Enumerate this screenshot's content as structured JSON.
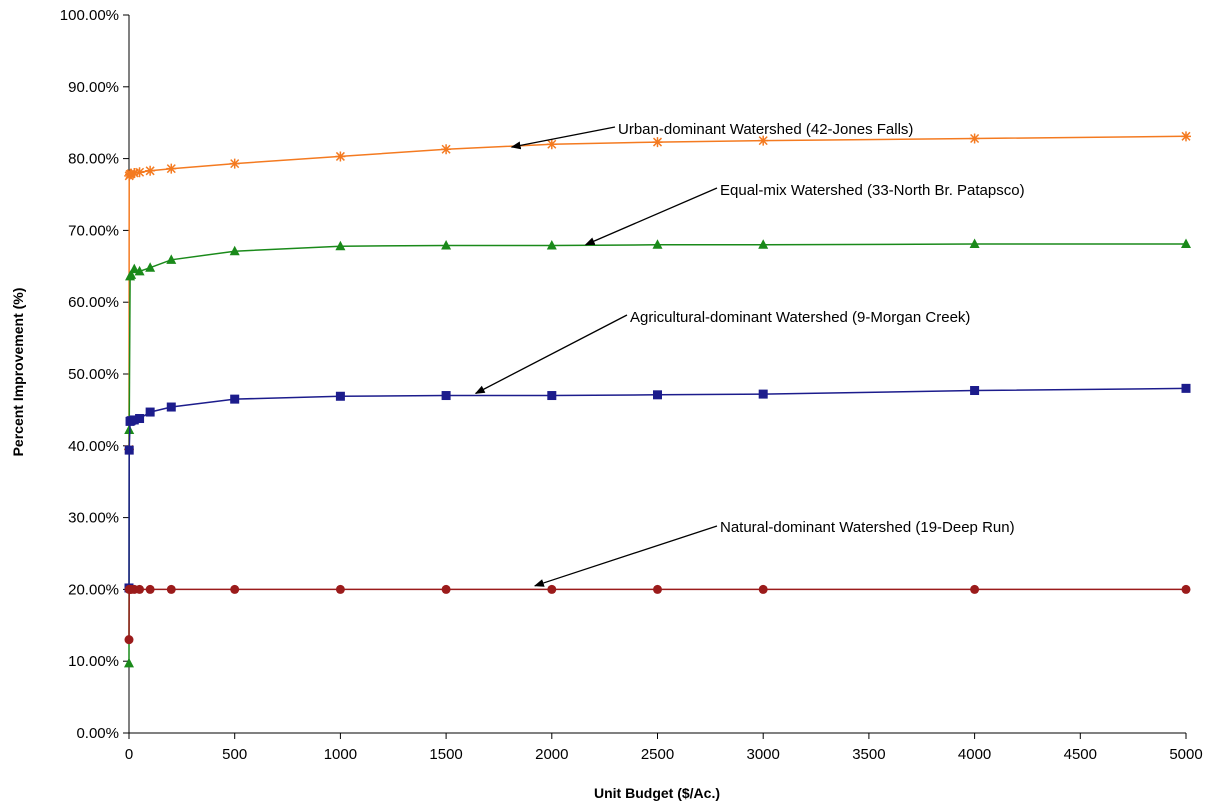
{
  "chart_data": {
    "type": "line",
    "title": "",
    "xlabel": "Unit Budget ($/Ac.)",
    "ylabel": "Percent Improvement (%)",
    "xlim": [
      0,
      5000
    ],
    "ylim": [
      0,
      1
    ],
    "x_ticks": [
      0,
      500,
      1000,
      1500,
      2000,
      2500,
      3000,
      3500,
      4000,
      4500,
      5000
    ],
    "x_tick_labels": [
      "0",
      "500",
      "1000",
      "1500",
      "2000",
      "2500",
      "3000",
      "3500",
      "4000",
      "4500",
      "5000"
    ],
    "y_ticks": [
      0,
      0.1,
      0.2,
      0.3,
      0.4,
      0.5,
      0.6,
      0.7,
      0.8,
      0.9,
      1.0
    ],
    "y_tick_labels": [
      "0.00%",
      "10.00%",
      "20.00%",
      "30.00%",
      "40.00%",
      "50.00%",
      "60.00%",
      "70.00%",
      "80.00%",
      "90.00%",
      "100.00%"
    ],
    "grid": false,
    "legend": "none",
    "series": [
      {
        "marker": "asterisk",
        "color": "#F47A20",
        "x": [
          0,
          1,
          5,
          10,
          25,
          50,
          100,
          200,
          500,
          1000,
          1500,
          2000,
          2500,
          3000,
          4000,
          5000
        ],
        "y": [
          0.395,
          0.776,
          0.778,
          0.779,
          0.78,
          0.781,
          0.783,
          0.786,
          0.793,
          0.803,
          0.813,
          0.82,
          0.823,
          0.825,
          0.828,
          0.831
        ]
      },
      {
        "marker": "triangle",
        "color": "#1A8A1A",
        "x": [
          0,
          1,
          5,
          10,
          25,
          50,
          100,
          200,
          500,
          1000,
          1500,
          2000,
          2500,
          3000,
          4000,
          5000
        ],
        "y": [
          0.097,
          0.422,
          0.636,
          0.638,
          0.646,
          0.643,
          0.648,
          0.659,
          0.671,
          0.678,
          0.679,
          0.679,
          0.68,
          0.68,
          0.681,
          0.681
        ]
      },
      {
        "marker": "square",
        "color": "#1C1C8C",
        "x": [
          0,
          1,
          5,
          10,
          25,
          50,
          100,
          200,
          500,
          1000,
          1500,
          2000,
          2500,
          3000,
          4000,
          5000
        ],
        "y": [
          0.202,
          0.394,
          0.434,
          0.435,
          0.436,
          0.438,
          0.447,
          0.454,
          0.465,
          0.469,
          0.47,
          0.47,
          0.471,
          0.472,
          0.477,
          0.48
        ]
      },
      {
        "marker": "circle",
        "color": "#9B1B1B",
        "x": [
          0,
          1,
          5,
          10,
          25,
          50,
          100,
          200,
          500,
          1000,
          1500,
          2000,
          2500,
          3000,
          4000,
          5000
        ],
        "y": [
          0.13,
          0.2,
          0.2,
          0.2,
          0.2,
          0.2,
          0.2,
          0.2,
          0.2,
          0.2,
          0.2,
          0.2,
          0.2,
          0.2,
          0.2,
          0.2
        ]
      }
    ],
    "annotations": [
      {
        "text": "Urban-dominant Watershed (42-Jones Falls)",
        "arrow_to": [
          1810,
          0.816
        ]
      },
      {
        "text": "Equal-mix Watershed (33-North Br. Patapsco)",
        "arrow_to": [
          2160,
          0.68
        ]
      },
      {
        "text": "Agricultural-dominant Watershed (9-Morgan Creek)",
        "arrow_to": [
          1640,
          0.473
        ]
      },
      {
        "text": "Natural-dominant Watershed (19-Deep Run)",
        "arrow_to": [
          1920,
          0.205
        ]
      }
    ]
  }
}
